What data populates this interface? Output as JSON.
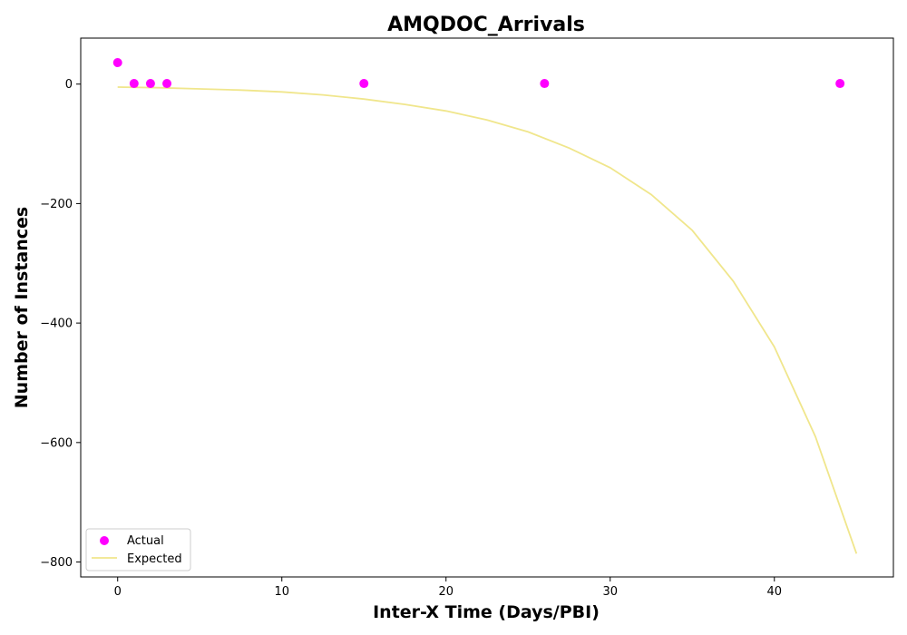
{
  "chart_data": {
    "type": "scatter",
    "title": "AMQDOC_Arrivals",
    "xlabel": "Inter-X Time (Days/PBI)",
    "ylabel": "Number of Instances",
    "xlim": [
      -2.25,
      47.25
    ],
    "ylim": [
      -825,
      77
    ],
    "x_ticks": [
      0,
      10,
      20,
      30,
      40
    ],
    "y_ticks": [
      0,
      -200,
      -400,
      -600,
      -800
    ],
    "grid": false,
    "legend_position": "lower-left",
    "colors": {
      "actual": "#ff00ff",
      "expected": "#f0e68c"
    },
    "series": [
      {
        "name": "Actual",
        "kind": "scatter",
        "x": [
          0,
          1,
          2,
          3,
          15,
          26,
          44
        ],
        "y": [
          36,
          1,
          1,
          1,
          1,
          1,
          1
        ]
      },
      {
        "name": "Expected",
        "kind": "line",
        "x": [
          0,
          2.5,
          5,
          7.5,
          10,
          12.5,
          15,
          17.5,
          20,
          22.5,
          25,
          27.5,
          30,
          32.5,
          35,
          37.5,
          40,
          42.5,
          45
        ],
        "y": [
          -5,
          -6,
          -8,
          -10,
          -13,
          -18,
          -25,
          -34,
          -45,
          -60,
          -80,
          -107,
          -140,
          -185,
          -245,
          -330,
          -440,
          -590,
          -786
        ]
      }
    ]
  }
}
